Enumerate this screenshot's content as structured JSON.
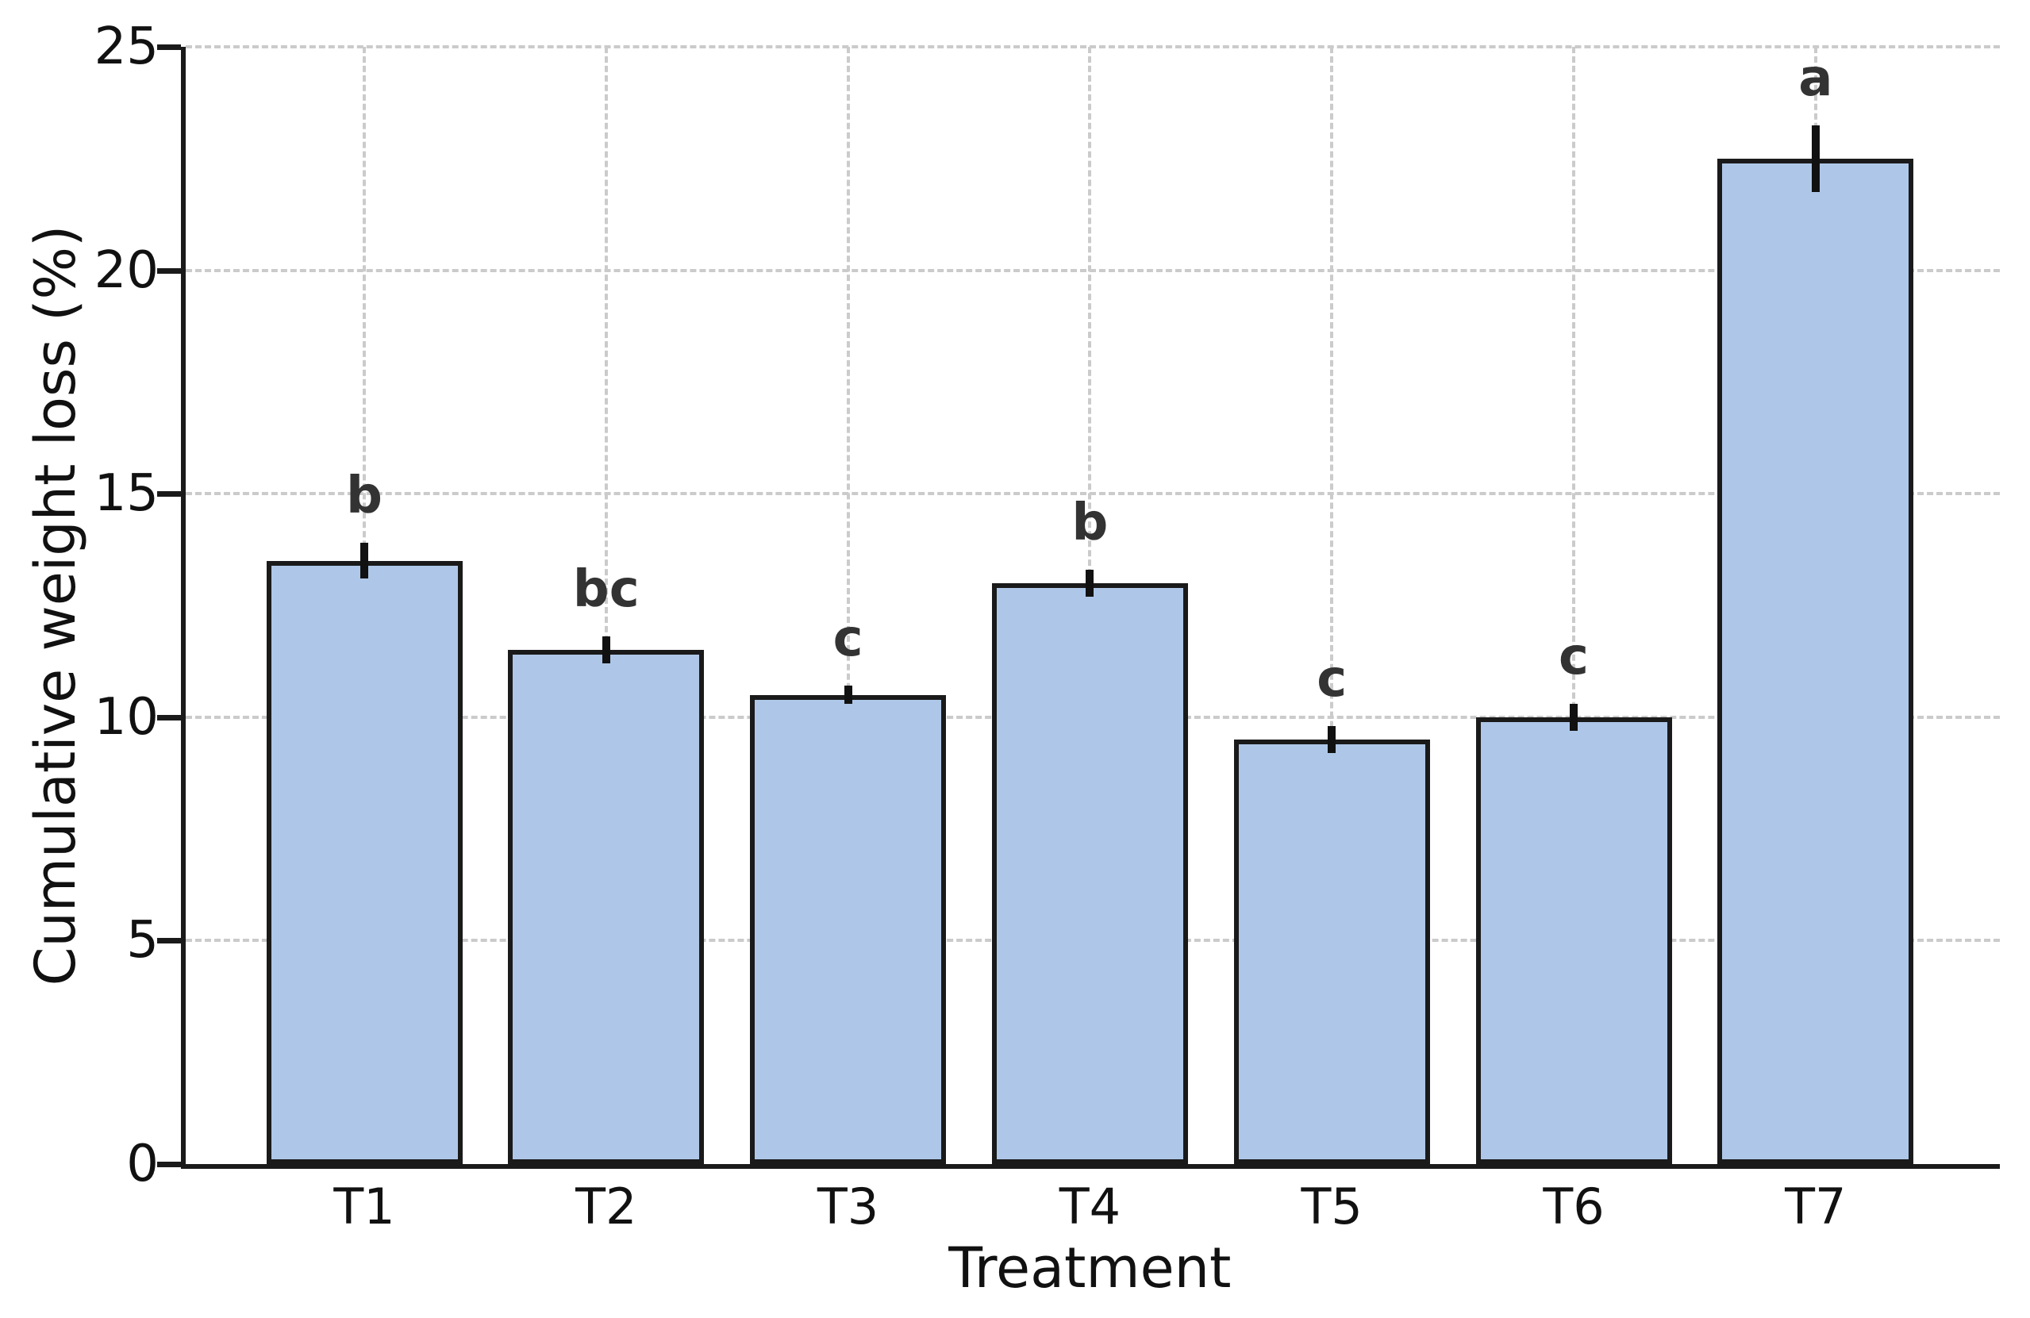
{
  "chart_data": {
    "type": "bar",
    "categories": [
      "T1",
      "T2",
      "T3",
      "T4",
      "T5",
      "T6",
      "T7"
    ],
    "values": [
      13.5,
      11.5,
      10.5,
      13.0,
      9.5,
      10.0,
      22.5
    ],
    "errors": [
      0.4,
      0.3,
      0.2,
      0.3,
      0.3,
      0.3,
      0.75
    ],
    "sig_letters": [
      "b",
      "bc",
      "c",
      "b",
      "c",
      "c",
      "a"
    ],
    "xlabel": "Treatment",
    "ylabel": "Cumulative weight loss (%)",
    "ylim": [
      0,
      25
    ],
    "yticks": [
      0,
      5,
      10,
      15,
      20,
      25
    ],
    "grid": "dashed-both-directions",
    "legend": "none",
    "bar_color": "#aec7e8",
    "bar_edge_color": "#1a1a1a",
    "error_bar_color": "#111111",
    "sig_letter_color": "#333333",
    "grid_color": "#cbcbcb"
  }
}
